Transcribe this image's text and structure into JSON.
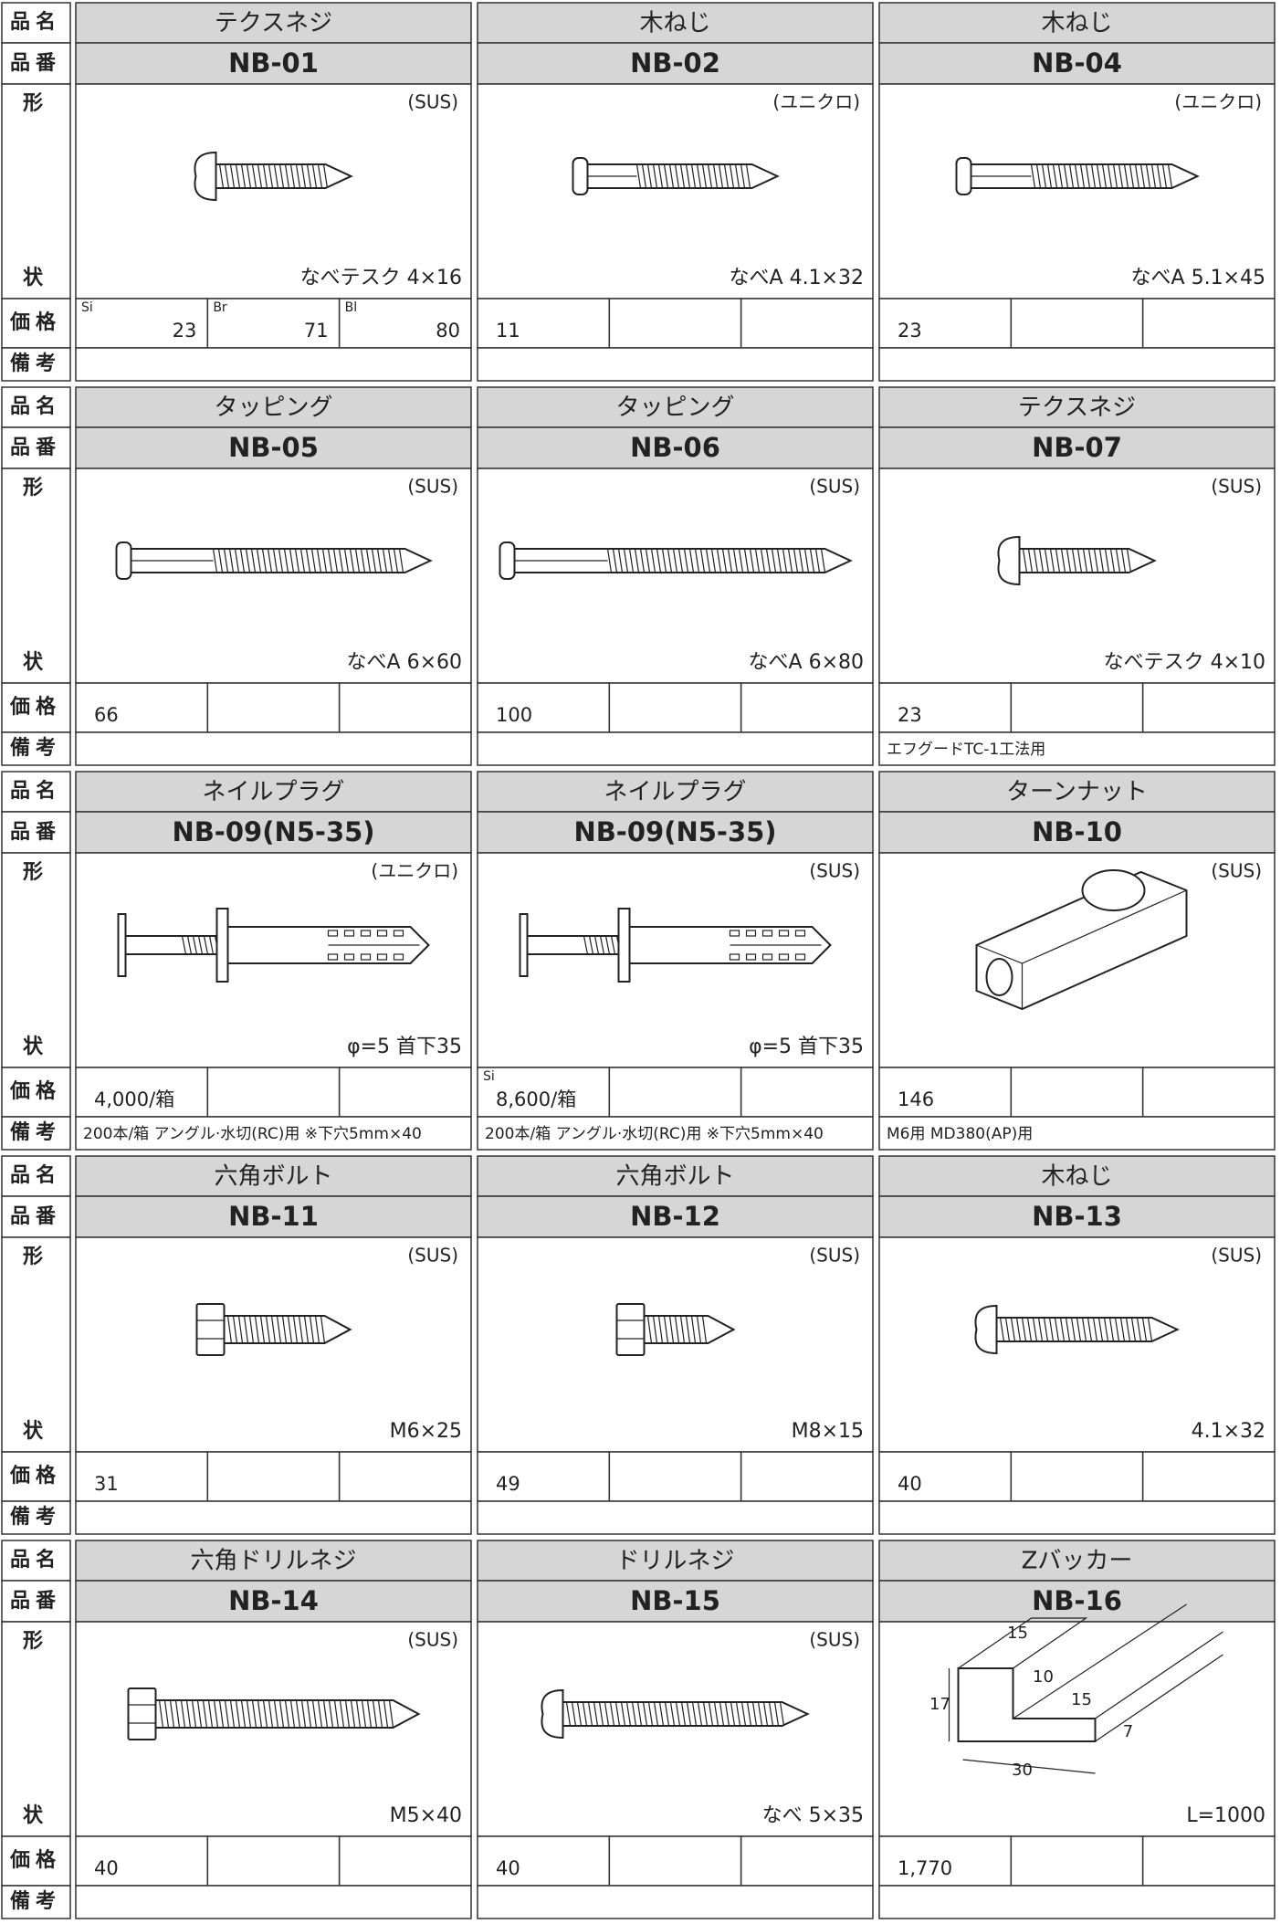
{
  "labels": {
    "name": "品名",
    "code": "品番",
    "shape_top": "形",
    "shape_bottom": "状",
    "price": "価格",
    "note": "備考"
  },
  "items": [
    {
      "name": "テクスネジ",
      "code": "NB-01",
      "material": "(SUS)",
      "spec": "なべテスク 4×16",
      "prices": [
        {
          "tag": "Si",
          "value": 23
        },
        {
          "tag": "Br",
          "value": 71
        },
        {
          "tag": "Bl",
          "value": 80
        }
      ]
    },
    {
      "name": "木ねじ",
      "code": "NB-02",
      "material": "(ユニクロ)",
      "spec": "なべA 4.1×32",
      "prices": [
        {
          "value": 11
        }
      ]
    },
    {
      "name": "木ねじ",
      "code": "NB-04",
      "material": "(ユニクロ)",
      "spec": "なべA 5.1×45",
      "prices": [
        {
          "value": 23
        }
      ]
    },
    {
      "name": "タッピング",
      "code": "NB-05",
      "material": "(SUS)",
      "spec": "なべA 6×60",
      "prices": [
        {
          "value": 66
        }
      ]
    },
    {
      "name": "タッピング",
      "code": "NB-06",
      "material": "(SUS)",
      "spec": "なべA 6×80",
      "prices": [
        {
          "value": 100
        }
      ]
    },
    {
      "name": "テクスネジ",
      "code": "NB-07",
      "material": "(SUS)",
      "spec": "なべテスク 4×10",
      "prices": [
        {
          "value": 23
        }
      ],
      "note": "エフグードTC-1工法用"
    },
    {
      "name": "ネイルプラグ",
      "code": "NB-09(N5-35)",
      "material": "(ユニクロ)",
      "spec": "φ=5 首下35",
      "prices": [
        {
          "value": "4,000/箱"
        }
      ],
      "note": "200本/箱 アングル·水切(RC)用 ※下穴5mm×40"
    },
    {
      "name": "ネイルプラグ",
      "code": "NB-09(N5-35)",
      "material": "(SUS)",
      "spec": "φ=5 首下35",
      "prices": [
        {
          "tag": "Si",
          "value": "8,600/箱"
        }
      ],
      "note": "200本/箱 アングル·水切(RC)用 ※下穴5mm×40"
    },
    {
      "name": "ターンナット",
      "code": "NB-10",
      "material": "(SUS)",
      "prices": [
        {
          "value": 146
        }
      ],
      "note": "M6用 MD380(AP)用"
    },
    {
      "name": "六角ボルト",
      "code": "NB-11",
      "material": "(SUS)",
      "spec": "M6×25",
      "prices": [
        {
          "value": 31
        }
      ]
    },
    {
      "name": "六角ボルト",
      "code": "NB-12",
      "material": "(SUS)",
      "spec": "M8×15",
      "prices": [
        {
          "value": 49
        }
      ]
    },
    {
      "name": "木ねじ",
      "code": "NB-13",
      "material": "(SUS)",
      "spec": "4.1×32",
      "prices": [
        {
          "value": 40
        }
      ]
    },
    {
      "name": "六角ドリルネジ",
      "code": "NB-14",
      "material": "(SUS)",
      "spec": "M5×40",
      "prices": [
        {
          "value": 40
        }
      ]
    },
    {
      "name": "ドリルネジ",
      "code": "NB-15",
      "material": "(SUS)",
      "spec": "なべ 5×35",
      "prices": [
        {
          "value": 40
        }
      ]
    },
    {
      "name": "Zバッカー",
      "code": "NB-16",
      "spec": "L=1000",
      "prices": [
        {
          "value": "1,770"
        }
      ],
      "dimensions": [
        15,
        10,
        15,
        7,
        17,
        30
      ]
    }
  ]
}
